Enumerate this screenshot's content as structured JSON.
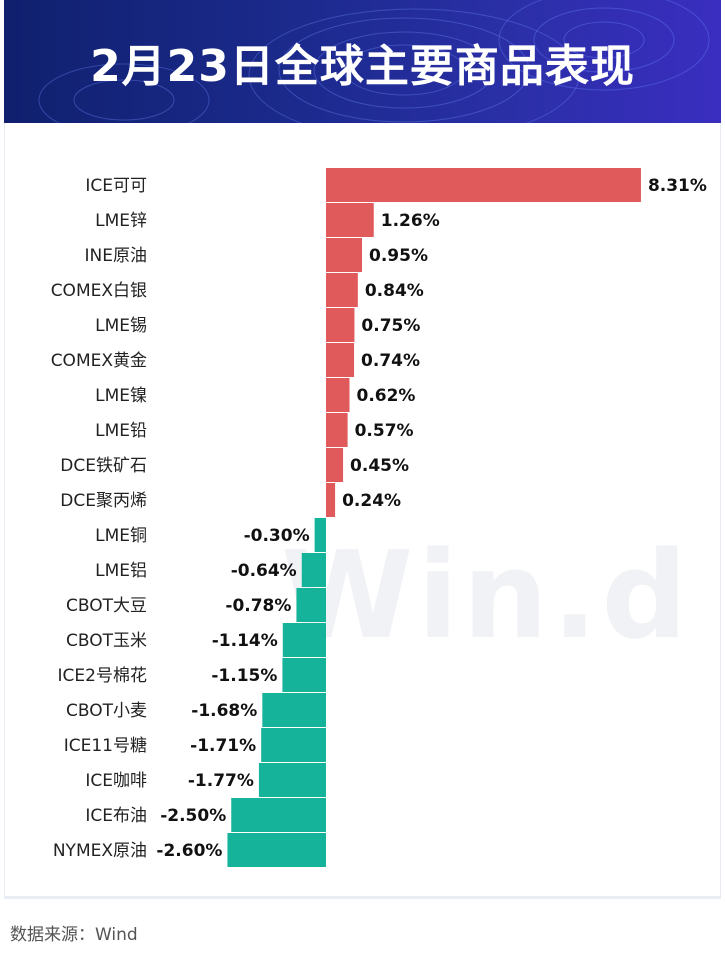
{
  "header": {
    "title": "2月23日全球主要商品表现"
  },
  "watermark": "Win.d",
  "source": "数据来源：Wind",
  "colors": {
    "positive": "#e05a5c",
    "negative": "#15b39a",
    "header_bg": "#1b2a8c"
  },
  "chart_data": {
    "type": "bar",
    "orientation": "horizontal",
    "unit": "%",
    "categories": [
      "ICE可可",
      "LME锌",
      "INE原油",
      "COMEX白银",
      "LME锡",
      "COMEX黄金",
      "LME镍",
      "LME铅",
      "DCE铁矿石",
      "DCE聚丙烯",
      "LME铜",
      "LME铝",
      "CBOT大豆",
      "CBOT玉米",
      "ICE2号棉花",
      "CBOT小麦",
      "ICE11号糖",
      "ICE咖啡",
      "ICE布油",
      "NYMEX原油"
    ],
    "values": [
      8.31,
      1.26,
      0.95,
      0.84,
      0.75,
      0.74,
      0.62,
      0.57,
      0.45,
      0.24,
      -0.3,
      -0.64,
      -0.78,
      -1.14,
      -1.15,
      -1.68,
      -1.71,
      -1.77,
      -2.5,
      -2.6
    ],
    "labels": [
      "8.31%",
      "1.26%",
      "0.95%",
      "0.84%",
      "0.75%",
      "0.74%",
      "0.62%",
      "0.57%",
      "0.45%",
      "0.24%",
      "-0.30%",
      "-0.64%",
      "-0.78%",
      "-1.14%",
      "-1.15%",
      "-1.68%",
      "-1.71%",
      "-1.77%",
      "-2.50%",
      "-2.60%"
    ],
    "grid": false,
    "legend": "none"
  }
}
